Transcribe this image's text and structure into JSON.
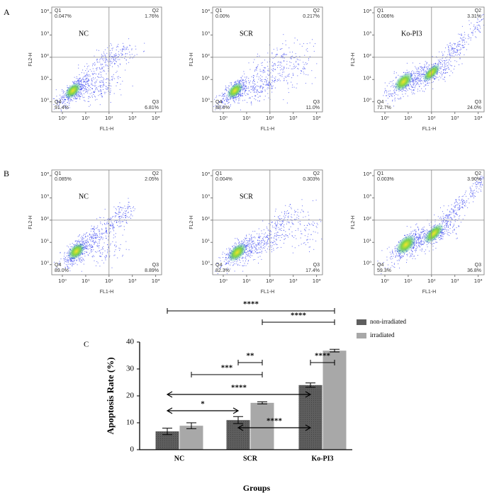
{
  "panel_labels": [
    "A",
    "B",
    "C"
  ],
  "chart_data": [
    {
      "type": "flow",
      "annotation": "NC",
      "xlabel": "FL1-H",
      "ylabel": "FL2-H",
      "log": true,
      "xlim": [
        0.35,
        18000
      ],
      "ylim": [
        0.35,
        18000
      ],
      "xticks": [
        {
          "value": 1,
          "label": "10⁰"
        },
        {
          "value": 10,
          "label": "10¹"
        },
        {
          "value": 100,
          "label": "10²"
        },
        {
          "value": 1000,
          "label": "10³"
        },
        {
          "value": 10000,
          "label": "10⁴"
        }
      ],
      "yticks": [
        {
          "value": 1,
          "label": "10⁰"
        },
        {
          "value": 10,
          "label": "10¹"
        },
        {
          "value": 100,
          "label": "10²"
        },
        {
          "value": 1000,
          "label": "10³"
        },
        {
          "value": 10000,
          "label": "10⁴"
        }
      ],
      "gate": [
        100,
        100
      ],
      "quadrants": [
        {
          "name": "Q1",
          "value": 0.047,
          "label": "0.047%"
        },
        {
          "name": "Q2",
          "value": 1.76,
          "label": "1.76%"
        },
        {
          "name": "Q3",
          "value": 6.81,
          "label": "6.81%"
        },
        {
          "name": "Q4",
          "value": 91.4,
          "label": "91.4%"
        }
      ]
    },
    {
      "type": "flow",
      "annotation": "SCR",
      "xlabel": "FL1-H",
      "ylabel": "FL2-H",
      "log": true,
      "xlim": [
        0.35,
        18000
      ],
      "ylim": [
        0.35,
        18000
      ],
      "xticks": [
        {
          "value": 1,
          "label": "10⁰"
        },
        {
          "value": 10,
          "label": "10¹"
        },
        {
          "value": 100,
          "label": "10²"
        },
        {
          "value": 1000,
          "label": "10³"
        },
        {
          "value": 10000,
          "label": "10⁴"
        }
      ],
      "yticks": [
        {
          "value": 1,
          "label": "10⁰"
        },
        {
          "value": 10,
          "label": "10¹"
        },
        {
          "value": 100,
          "label": "10²"
        },
        {
          "value": 1000,
          "label": "10³"
        },
        {
          "value": 10000,
          "label": "10⁴"
        }
      ],
      "gate": [
        100,
        100
      ],
      "quadrants": [
        {
          "name": "Q1",
          "value": 0,
          "label": "0.00%"
        },
        {
          "name": "Q2",
          "value": 0.217,
          "label": "0.217%"
        },
        {
          "name": "Q3",
          "value": 11.0,
          "label": "11.0%"
        },
        {
          "name": "Q4",
          "value": 88.8,
          "label": "88.8%"
        }
      ]
    },
    {
      "type": "flow",
      "annotation": "Ko-PI3",
      "xlabel": "FL1-H",
      "ylabel": "FL2-H",
      "log": true,
      "xlim": [
        0.35,
        18000
      ],
      "ylim": [
        0.35,
        18000
      ],
      "xticks": [
        {
          "value": 1,
          "label": "10⁰"
        },
        {
          "value": 10,
          "label": "10¹"
        },
        {
          "value": 100,
          "label": "10²"
        },
        {
          "value": 1000,
          "label": "10³"
        },
        {
          "value": 10000,
          "label": "10⁴"
        }
      ],
      "yticks": [
        {
          "value": 1,
          "label": "10⁰"
        },
        {
          "value": 10,
          "label": "10¹"
        },
        {
          "value": 100,
          "label": "10²"
        },
        {
          "value": 1000,
          "label": "10³"
        },
        {
          "value": 10000,
          "label": "10⁴"
        }
      ],
      "gate": [
        100,
        100
      ],
      "quadrants": [
        {
          "name": "Q1",
          "value": 0.006,
          "label": "0.006%"
        },
        {
          "name": "Q2",
          "value": 3.31,
          "label": "3.31%"
        },
        {
          "name": "Q3",
          "value": 24.0,
          "label": "24.0%"
        },
        {
          "name": "Q4",
          "value": 72.7,
          "label": "72.7%"
        }
      ]
    },
    {
      "type": "flow",
      "annotation": "NC",
      "xlabel": "FL1-H",
      "ylabel": "FL2-H",
      "log": true,
      "xlim": [
        0.35,
        18000
      ],
      "ylim": [
        0.35,
        18000
      ],
      "xticks": [
        {
          "value": 1,
          "label": "10⁰"
        },
        {
          "value": 10,
          "label": "10¹"
        },
        {
          "value": 100,
          "label": "10²"
        },
        {
          "value": 1000,
          "label": "10³"
        },
        {
          "value": 10000,
          "label": "10⁴"
        }
      ],
      "yticks": [
        {
          "value": 1,
          "label": "10⁰"
        },
        {
          "value": 10,
          "label": "10¹"
        },
        {
          "value": 100,
          "label": "10²"
        },
        {
          "value": 1000,
          "label": "10³"
        },
        {
          "value": 10000,
          "label": "10⁴"
        }
      ],
      "gate": [
        100,
        100
      ],
      "quadrants": [
        {
          "name": "Q1",
          "value": 0.085,
          "label": "0.085%"
        },
        {
          "name": "Q2",
          "value": 2.05,
          "label": "2.05%"
        },
        {
          "name": "Q3",
          "value": 8.89,
          "label": "8.89%"
        },
        {
          "name": "Q4",
          "value": 89.0,
          "label": "89.0%"
        }
      ]
    },
    {
      "type": "flow",
      "annotation": "SCR",
      "xlabel": "FL1-H",
      "ylabel": "FL2-H",
      "log": true,
      "xlim": [
        0.35,
        18000
      ],
      "ylim": [
        0.35,
        18000
      ],
      "xticks": [
        {
          "value": 1,
          "label": "10⁰"
        },
        {
          "value": 10,
          "label": "10¹"
        },
        {
          "value": 100,
          "label": "10²"
        },
        {
          "value": 1000,
          "label": "10³"
        },
        {
          "value": 10000,
          "label": "10⁴"
        }
      ],
      "yticks": [
        {
          "value": 1,
          "label": "10⁰"
        },
        {
          "value": 10,
          "label": "10¹"
        },
        {
          "value": 100,
          "label": "10²"
        },
        {
          "value": 1000,
          "label": "10³"
        },
        {
          "value": 10000,
          "label": "10⁴"
        }
      ],
      "gate": [
        100,
        100
      ],
      "quadrants": [
        {
          "name": "Q1",
          "value": 0.004,
          "label": "0.004%"
        },
        {
          "name": "Q2",
          "value": 0.303,
          "label": "0.303%"
        },
        {
          "name": "Q3",
          "value": 17.4,
          "label": "17.4%"
        },
        {
          "name": "Q4",
          "value": 82.3,
          "label": "82.3%"
        }
      ]
    },
    {
      "type": "flow",
      "xlabel": "FL1-H",
      "ylabel": "FL2-H",
      "log": true,
      "xlim": [
        0.35,
        18000
      ],
      "ylim": [
        0.35,
        18000
      ],
      "xticks": [
        {
          "value": 1,
          "label": "10⁰"
        },
        {
          "value": 10,
          "label": "10¹"
        },
        {
          "value": 100,
          "label": "10²"
        },
        {
          "value": 1000,
          "label": "10³"
        },
        {
          "value": 10000,
          "label": "10⁴"
        }
      ],
      "yticks": [
        {
          "value": 1,
          "label": "10⁰"
        },
        {
          "value": 10,
          "label": "10¹"
        },
        {
          "value": 100,
          "label": "10²"
        },
        {
          "value": 1000,
          "label": "10³"
        },
        {
          "value": 10000,
          "label": "10⁴"
        }
      ],
      "gate": [
        100,
        100
      ],
      "quadrants": [
        {
          "name": "Q1",
          "value": 0.003,
          "label": "0.003%"
        },
        {
          "name": "Q2",
          "value": 3.9,
          "label": "3.90%"
        },
        {
          "name": "Q3",
          "value": 36.8,
          "label": "36.8%"
        },
        {
          "name": "Q4",
          "value": 59.3,
          "label": "59.3%"
        }
      ]
    },
    {
      "type": "bar",
      "ylabel": "Apoptosis Rate (%)",
      "xlabel": "Groups",
      "categories": [
        "NC",
        "SCR",
        "Ko-PI3"
      ],
      "series": [
        {
          "name": "non-irradiated",
          "color": "#5e5e5e",
          "values": [
            6.8,
            11.0,
            24.0
          ],
          "errors": [
            1.2,
            1.3,
            0.8
          ]
        },
        {
          "name": "irradiated",
          "color": "#a8a8a8",
          "values": [
            8.9,
            17.4,
            36.8
          ],
          "errors": [
            1.1,
            0.4,
            0.5
          ]
        }
      ],
      "ylim": [
        0,
        40
      ],
      "yticks": [
        0,
        10,
        20,
        30,
        40
      ],
      "significance": [
        "****",
        "****",
        "****",
        "**",
        "***",
        "****",
        "*",
        "****"
      ]
    }
  ]
}
